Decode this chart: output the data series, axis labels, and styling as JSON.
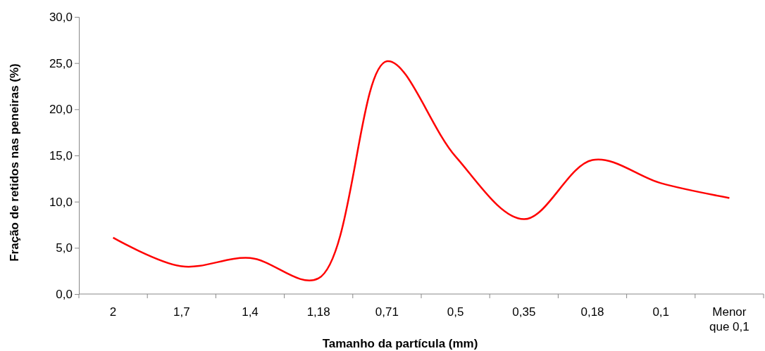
{
  "chart_data": {
    "type": "line",
    "xlabel": "Tamanho da partícula (mm)",
    "ylabel": "Fração de retidos nas peneiras (%)",
    "categories": [
      "2",
      "1,7",
      "1,4",
      "1,18",
      "0,71",
      "0,5",
      "0,35",
      "0,18",
      "0,1",
      "Menor que 0,1"
    ],
    "series": [
      {
        "color": "#ff0000",
        "values": [
          6.1,
          3.0,
          3.9,
          1.7,
          25.2,
          14.9,
          8.1,
          14.5,
          12.0,
          10.4
        ]
      }
    ],
    "ylim": [
      0,
      30
    ],
    "yticks": [
      {
        "value": 0,
        "label": "0,0"
      },
      {
        "value": 5,
        "label": "5,0"
      },
      {
        "value": 10,
        "label": "10,0"
      },
      {
        "value": 15,
        "label": "15,0"
      },
      {
        "value": 20,
        "label": "20,0"
      },
      {
        "value": 25,
        "label": "25,0"
      },
      {
        "value": 30,
        "label": "30,0"
      }
    ],
    "grid": false,
    "marker": "none",
    "line_style": "solid"
  }
}
